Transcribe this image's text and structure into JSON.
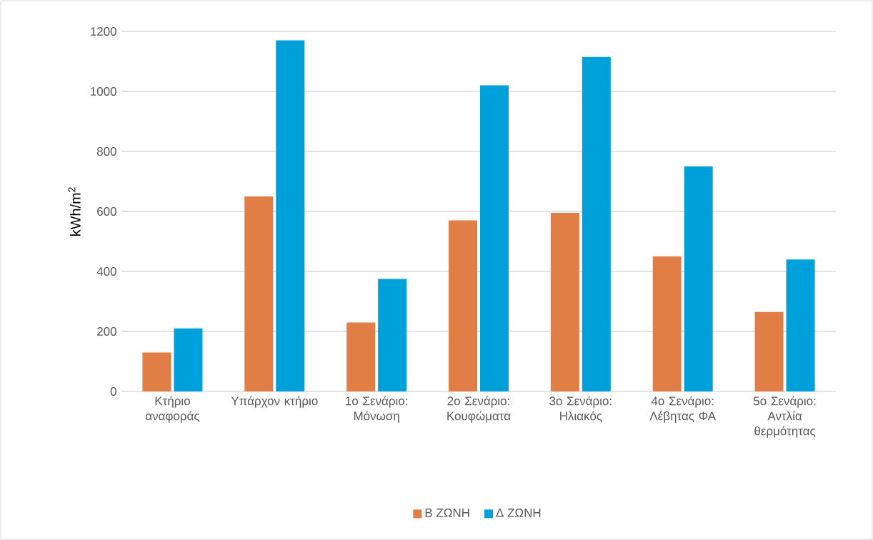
{
  "chart_data": {
    "type": "bar",
    "ylabel": "kWh/m$^{2}$",
    "categories": [
      "Κτήριο αναφοράς",
      "Υπάρχον κτήριο",
      "1ο Σενάριο: Μόνωση",
      "2ο Σενάριο: Κουφώματα",
      "3ο Σενάριο: Ηλιακός",
      "4ο Σενάριο: Λέβητας ΦΑ",
      "5ο Σενάριο: Αντλία θερμότητας"
    ],
    "series": [
      {
        "name": "Β ΖΩΝΗ",
        "color": "#e07e46",
        "values": [
          130,
          650,
          230,
          570,
          595,
          450,
          265
        ]
      },
      {
        "name": "Δ ΖΩΝΗ",
        "color": "#00a0da",
        "values": [
          210,
          1170,
          375,
          1020,
          1115,
          750,
          440
        ]
      }
    ],
    "ylim": [
      0,
      1200
    ],
    "yticks": [
      0,
      200,
      400,
      600,
      800,
      1000,
      1200
    ],
    "grid": "y",
    "legend": "bottom"
  }
}
